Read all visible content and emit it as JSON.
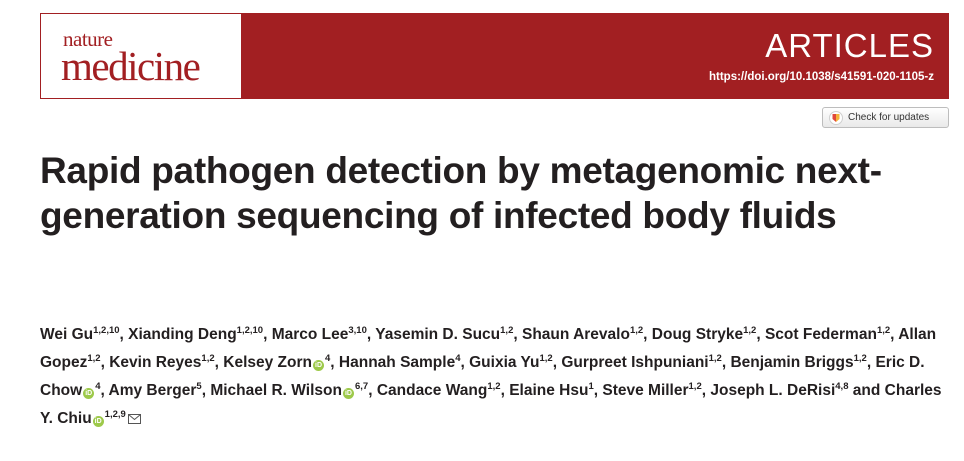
{
  "header": {
    "logo_top": "nature",
    "logo_bottom": "medicine",
    "section": "ARTICLES",
    "doi": "https://doi.org/10.1038/s41591-020-1105-z",
    "brand_color": "#a21f22"
  },
  "check_updates": {
    "label": "Check for updates",
    "icon": "crossmark-icon"
  },
  "title": "Rapid pathogen detection by metagenomic next-generation sequencing of infected body fluids",
  "authors": [
    {
      "name": "Wei Gu",
      "aff": "1,2,10",
      "orcid": false
    },
    {
      "name": "Xianding Deng",
      "aff": "1,2,10",
      "orcid": false
    },
    {
      "name": "Marco Lee",
      "aff": "3,10",
      "orcid": false
    },
    {
      "name": "Yasemin D. Sucu",
      "aff": "1,2",
      "orcid": false
    },
    {
      "name": "Shaun Arevalo",
      "aff": "1,2",
      "orcid": false
    },
    {
      "name": "Doug Stryke",
      "aff": "1,2",
      "orcid": false
    },
    {
      "name": "Scot Federman",
      "aff": "1,2",
      "orcid": false
    },
    {
      "name": "Allan Gopez",
      "aff": "1,2",
      "orcid": false
    },
    {
      "name": "Kevin Reyes",
      "aff": "1,2",
      "orcid": false
    },
    {
      "name": "Kelsey Zorn",
      "aff": "4",
      "orcid": true
    },
    {
      "name": "Hannah Sample",
      "aff": "4",
      "orcid": false
    },
    {
      "name": "Guixia Yu",
      "aff": "1,2",
      "orcid": false
    },
    {
      "name": "Gurpreet Ishpuniani",
      "aff": "1,2",
      "orcid": false
    },
    {
      "name": "Benjamin Briggs",
      "aff": "1,2",
      "orcid": false
    },
    {
      "name": "Eric D. Chow",
      "aff": "4",
      "orcid": true
    },
    {
      "name": "Amy Berger",
      "aff": "5",
      "orcid": false
    },
    {
      "name": "Michael R. Wilson",
      "aff": "6,7",
      "orcid": true
    },
    {
      "name": "Candace Wang",
      "aff": "1,2",
      "orcid": false
    },
    {
      "name": "Elaine Hsu",
      "aff": "1",
      "orcid": false
    },
    {
      "name": "Steve Miller",
      "aff": "1,2",
      "orcid": false
    },
    {
      "name": "Joseph L. DeRisi",
      "aff": "4,8",
      "orcid": false
    },
    {
      "name": "Charles Y. Chiu",
      "aff": "1,2,9",
      "orcid": true,
      "corresponding": true
    }
  ],
  "last_separator": " and ",
  "orcid_icon": "orcid-icon",
  "mail_icon": "envelope-icon"
}
